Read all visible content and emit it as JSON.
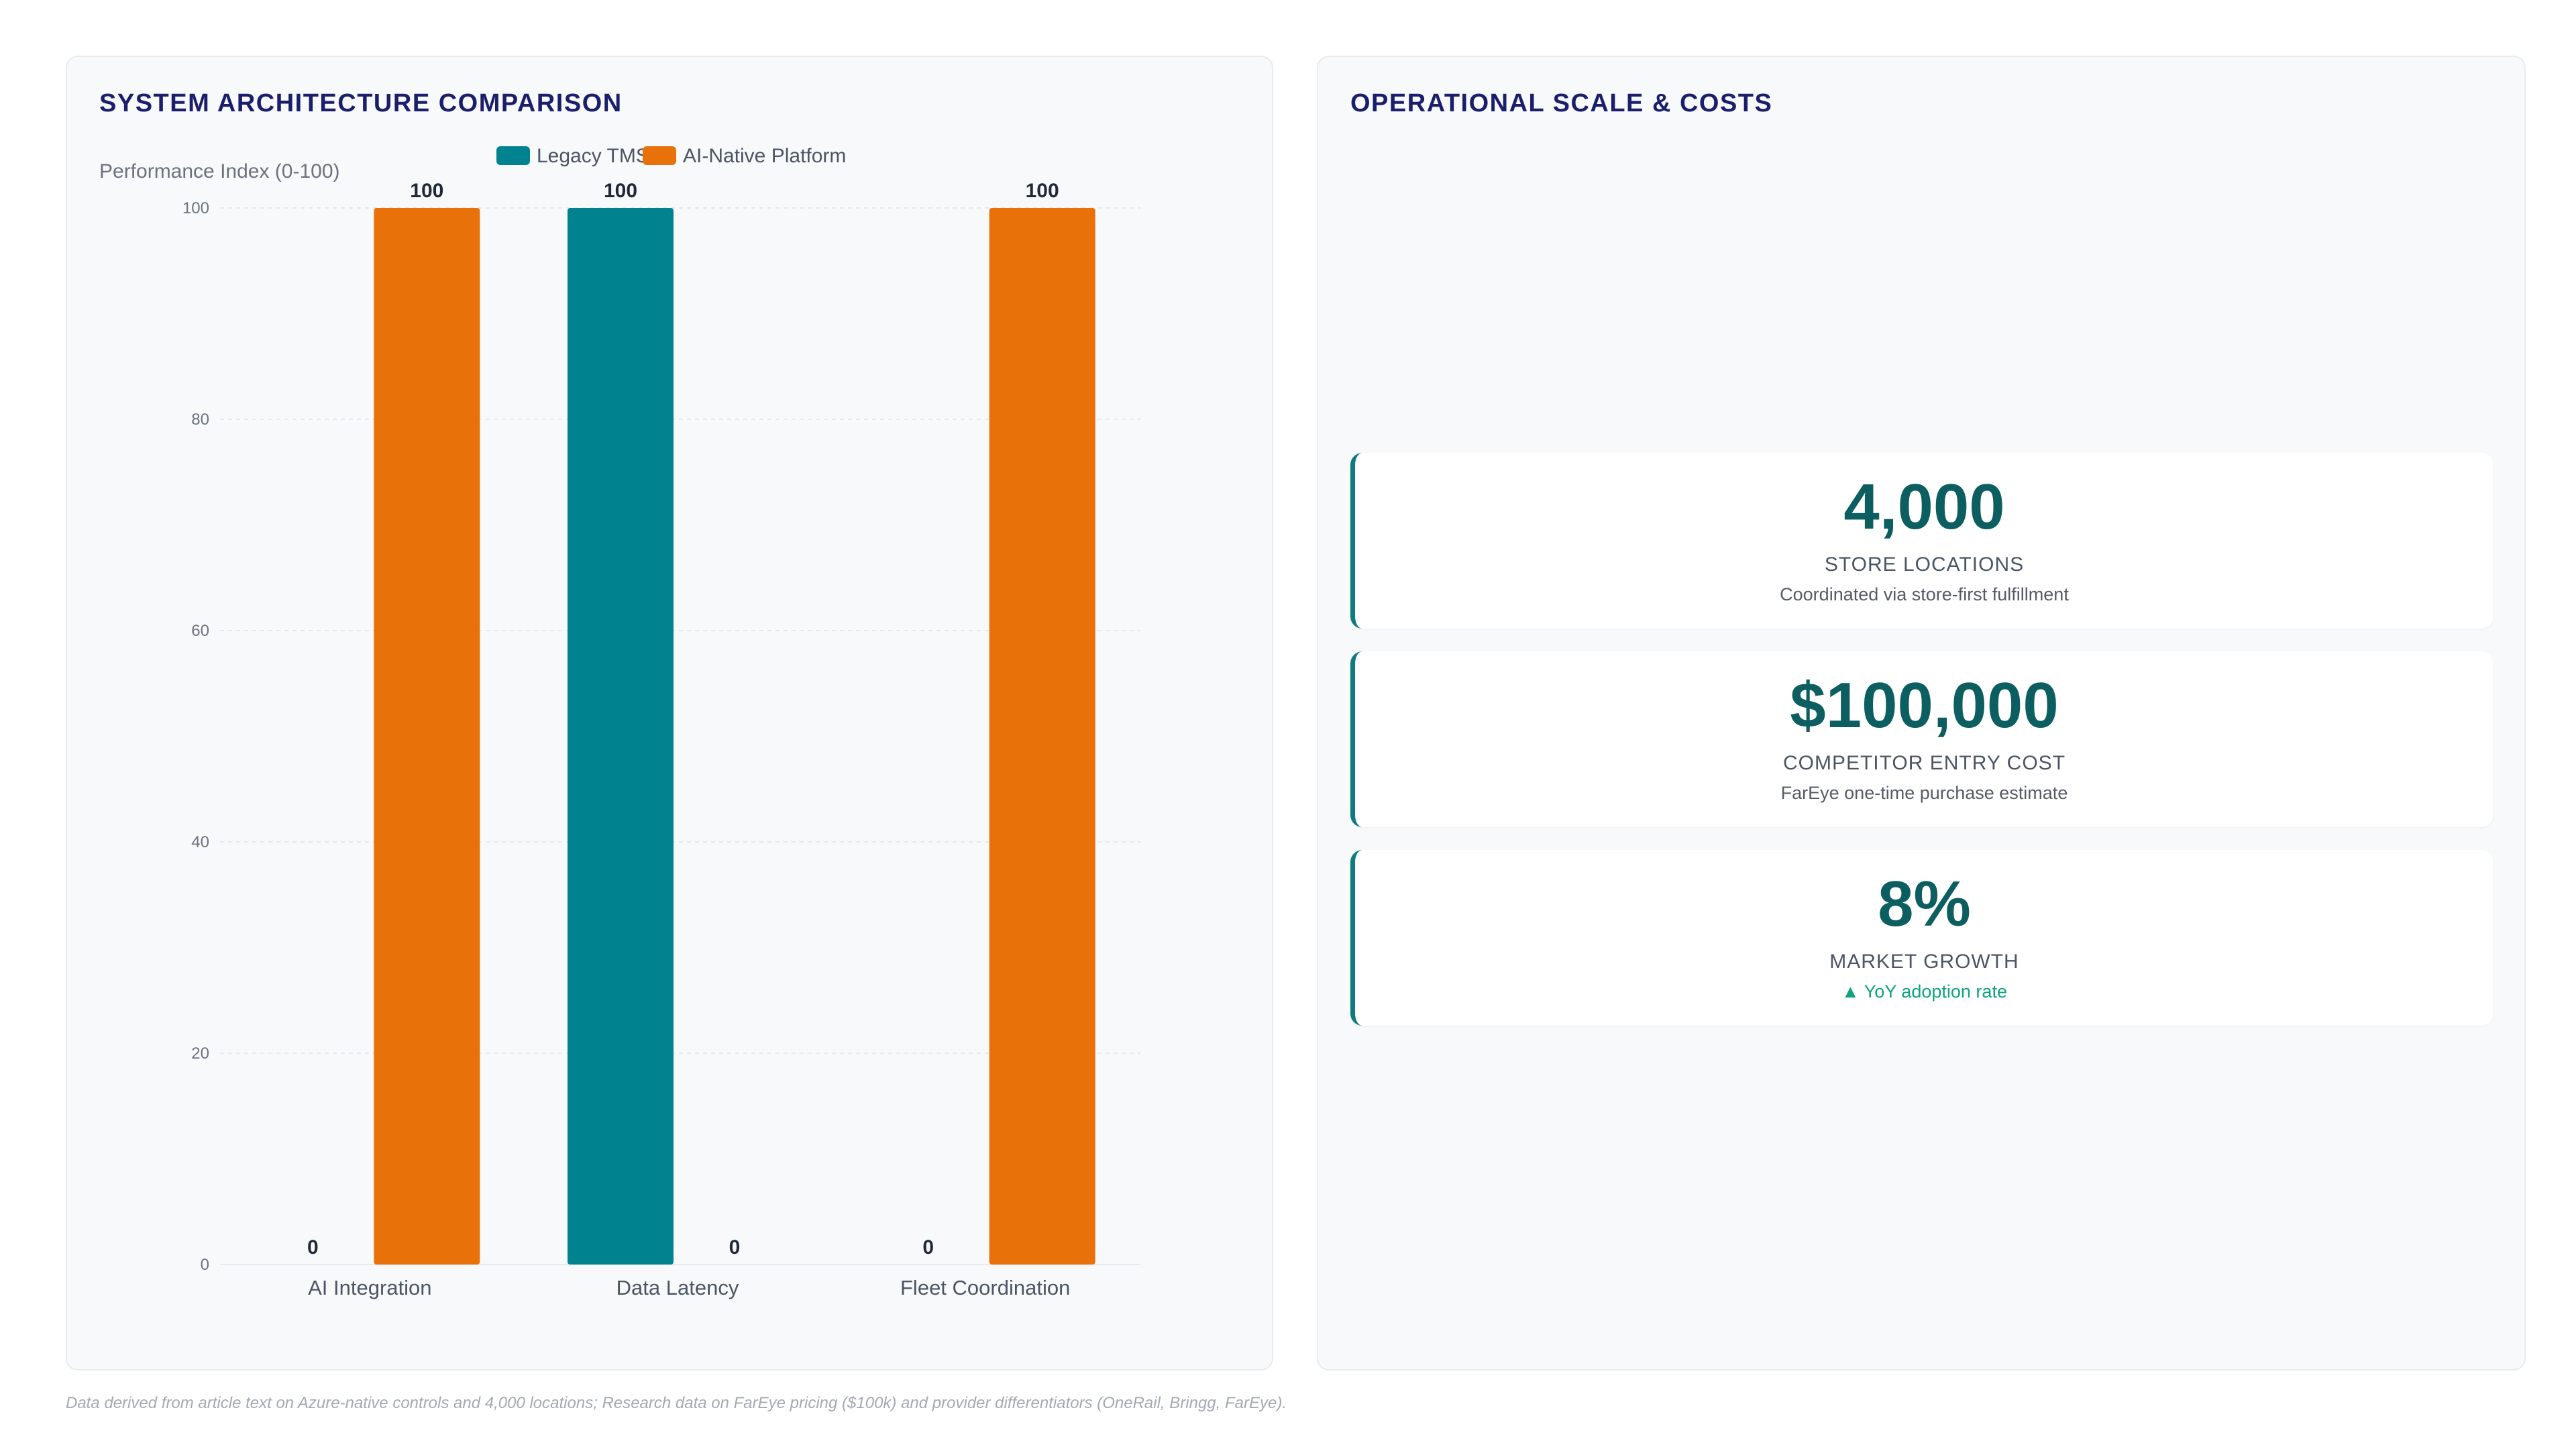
{
  "left_panel": {
    "title": "SYSTEM ARCHITECTURE COMPARISON"
  },
  "right_panel": {
    "title": "OPERATIONAL SCALE & COSTS"
  },
  "chart_data": {
    "type": "bar",
    "title": "SYSTEM ARCHITECTURE COMPARISON",
    "ylabel": "Performance Index (0-100)",
    "xlabel": "",
    "categories": [
      "AI Integration",
      "Data Latency",
      "Fleet Coordination"
    ],
    "series": [
      {
        "name": "Legacy TMS",
        "values": [
          0,
          100,
          0
        ],
        "color": "#00838f"
      },
      {
        "name": "AI-Native Platform",
        "values": [
          100,
          0,
          100
        ],
        "color": "#e8710a"
      }
    ],
    "ylim": [
      0,
      100
    ],
    "yticks": [
      0,
      20,
      40,
      60,
      80,
      100
    ],
    "grid": true,
    "legend": "top-center",
    "data_labels": true
  },
  "kpis": [
    {
      "value": "4,000",
      "label": "STORE LOCATIONS",
      "sub": "Coordinated via store-first fulfillment",
      "trend": "neutral"
    },
    {
      "value": "$100,000",
      "label": "COMPETITOR ENTRY COST",
      "sub": "FarEye one-time purchase estimate",
      "trend": "neutral"
    },
    {
      "value": "8%",
      "label": "MARKET GROWTH",
      "sub": "▲ YoY adoption rate",
      "trend": "positive"
    }
  ],
  "footnote": "Data derived from article text on Azure-native controls and 4,000 locations; Research data on FarEye pricing ($100k) and provider differentiators (OneRail, Bringg, FarEye)."
}
